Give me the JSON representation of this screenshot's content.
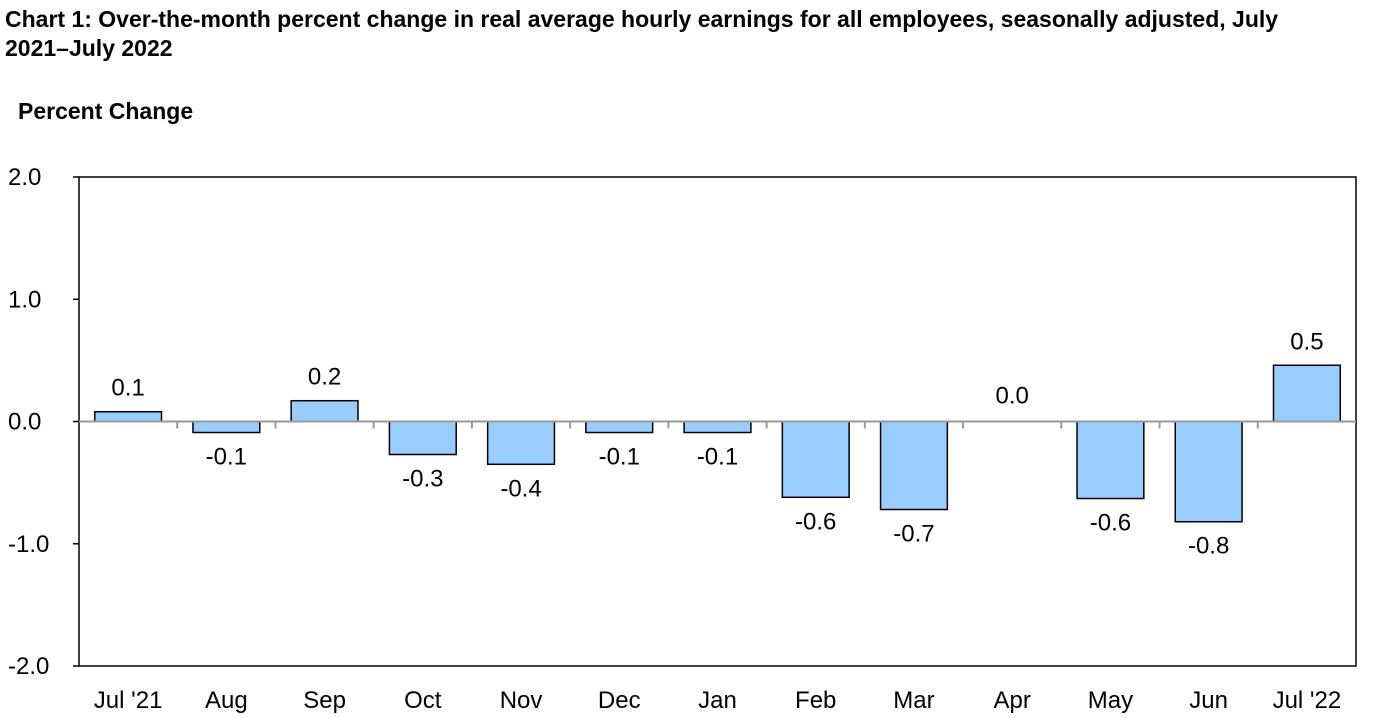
{
  "chart_data": {
    "type": "bar",
    "title": "Chart 1: Over-the-month percent change in real average hourly earnings for all employees, seasonally adjusted, July 2021–July 2022",
    "ylabel": "Percent Change",
    "xlabel": "",
    "categories": [
      "Jul '21",
      "Aug",
      "Sep",
      "Oct",
      "Nov",
      "Dec",
      "Jan",
      "Feb",
      "Mar",
      "Apr",
      "May",
      "Jun",
      "Jul '22"
    ],
    "values": [
      0.08,
      -0.09,
      0.17,
      -0.27,
      -0.35,
      -0.09,
      -0.09,
      -0.62,
      -0.72,
      0.0,
      -0.63,
      -0.82,
      0.46
    ],
    "data_labels": [
      "0.1",
      "-0.1",
      "0.2",
      "-0.3",
      "-0.4",
      "-0.1",
      "-0.1",
      "-0.6",
      "-0.7",
      "0.0",
      "-0.6",
      "-0.8",
      "0.5"
    ],
    "ylim": [
      -2.0,
      2.0
    ],
    "yticks": [
      2.0,
      1.0,
      0.0,
      -1.0,
      -2.0
    ],
    "ytick_labels": [
      "2.0",
      "1.0",
      "0.0",
      "-1.0",
      "-2.0"
    ],
    "bar_color": "#99ccff",
    "bar_edge_color": "#000000",
    "grid": false,
    "legend": "none"
  }
}
